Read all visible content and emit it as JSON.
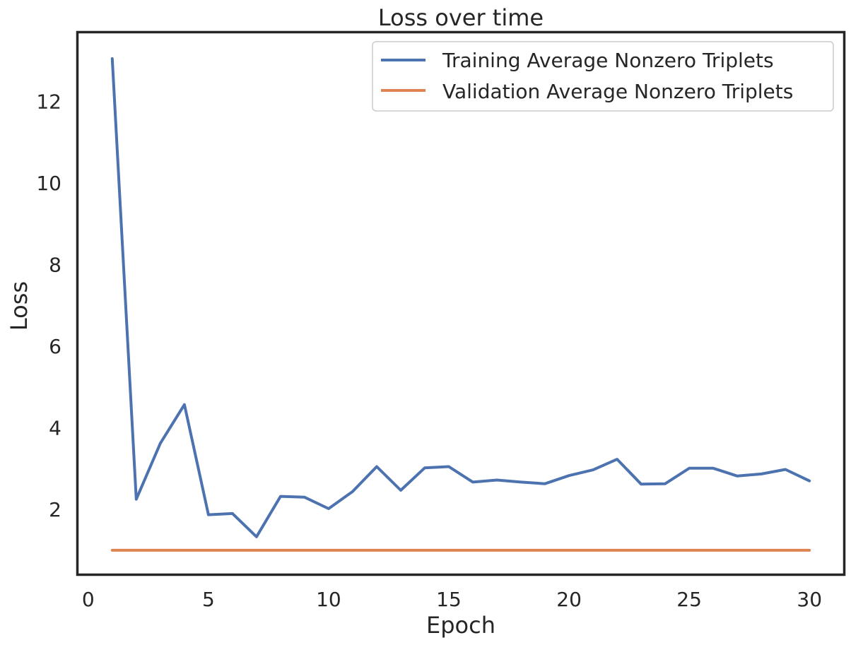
{
  "chart_data": {
    "type": "line",
    "title": "Loss over time",
    "xlabel": "Epoch",
    "ylabel": "Loss",
    "xlim": [
      -0.45,
      31.45
    ],
    "ylim": [
      0.4,
      13.7
    ],
    "xticks": [
      0,
      5,
      10,
      15,
      20,
      25,
      30
    ],
    "yticks": [
      2,
      4,
      6,
      8,
      10,
      12
    ],
    "grid": false,
    "legend_position": "top-right",
    "x": [
      1,
      2,
      3,
      4,
      5,
      6,
      7,
      8,
      9,
      10,
      11,
      12,
      13,
      14,
      15,
      16,
      17,
      18,
      19,
      20,
      21,
      22,
      23,
      24,
      25,
      26,
      27,
      28,
      29,
      30
    ],
    "series": [
      {
        "name": "Training Average Nonzero Triplets",
        "color": "#4c72b0",
        "values": [
          13.05,
          2.25,
          3.62,
          4.57,
          1.87,
          1.9,
          1.33,
          2.32,
          2.3,
          2.02,
          2.44,
          3.05,
          2.47,
          3.02,
          3.05,
          2.67,
          2.72,
          2.67,
          2.63,
          2.83,
          2.97,
          3.23,
          2.62,
          2.63,
          3.01,
          3.01,
          2.82,
          2.87,
          2.98,
          2.7
        ]
      },
      {
        "name": "Validation Average Nonzero Triplets",
        "color": "#dd8452",
        "values": [
          1.0,
          1.0,
          1.0,
          1.0,
          1.0,
          1.0,
          1.0,
          1.0,
          1.0,
          1.0,
          1.0,
          1.0,
          1.0,
          1.0,
          1.0,
          1.0,
          1.0,
          1.0,
          1.0,
          1.0,
          1.0,
          1.0,
          1.0,
          1.0,
          1.0,
          1.0,
          1.0,
          1.0,
          1.0,
          1.0
        ]
      }
    ]
  }
}
